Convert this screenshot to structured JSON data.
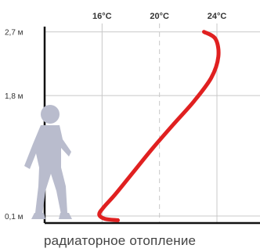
{
  "chart_data": {
    "type": "line",
    "title": "",
    "caption": "радиаторное отопление",
    "x_ticks": [
      {
        "value": 16,
        "label": "16°C"
      },
      {
        "value": 20,
        "label": "20°C"
      },
      {
        "value": 24,
        "label": "24°C"
      }
    ],
    "y_ticks": [
      {
        "value": 2.7,
        "label": "2,7 м"
      },
      {
        "value": 1.8,
        "label": "1,8 м"
      },
      {
        "value": 0.1,
        "label": "0,1 м"
      }
    ],
    "xlim": [
      12,
      27
    ],
    "ylim": [
      0,
      3.15
    ],
    "grid": true,
    "dashed_reference_x": 20,
    "series": [
      {
        "color": "#e02020",
        "points": [
          {
            "x": 23.1,
            "y": 2.7
          },
          {
            "x": 23.9,
            "y": 2.6
          },
          {
            "x": 24.1,
            "y": 2.35
          },
          {
            "x": 23.6,
            "y": 2.05
          },
          {
            "x": 22.4,
            "y": 1.72
          },
          {
            "x": 21.0,
            "y": 1.4
          },
          {
            "x": 19.5,
            "y": 1.05
          },
          {
            "x": 18.1,
            "y": 0.7
          },
          {
            "x": 16.9,
            "y": 0.4
          },
          {
            "x": 16.1,
            "y": 0.22
          },
          {
            "x": 15.8,
            "y": 0.12
          },
          {
            "x": 16.2,
            "y": 0.06
          },
          {
            "x": 17.1,
            "y": 0.04
          }
        ]
      }
    ],
    "person_figure_color": "#b9bccd"
  }
}
